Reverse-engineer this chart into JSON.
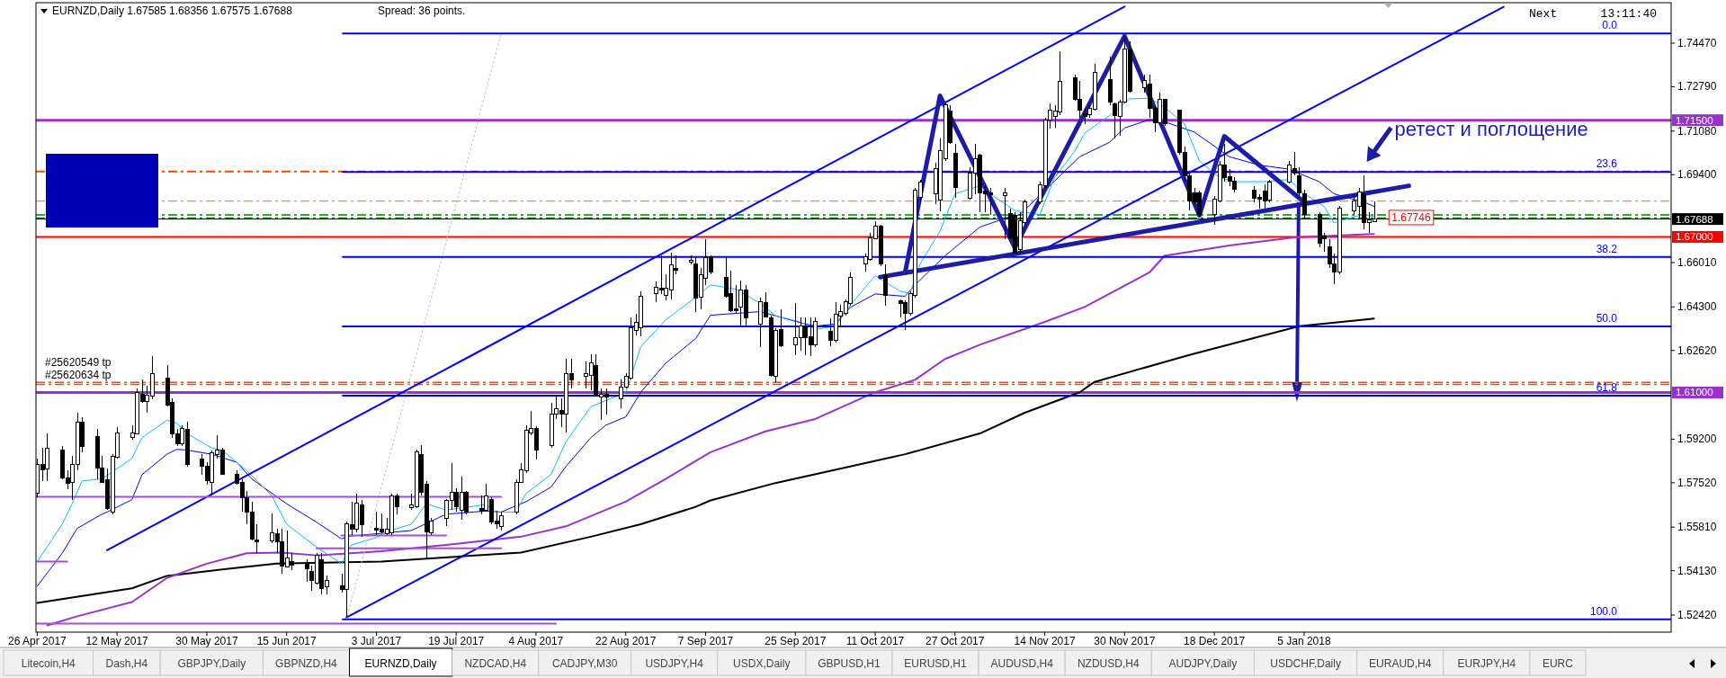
{
  "chart_data": {
    "type": "candlestick",
    "title": "EURNZD,Daily  1.67585 1.68356 1.67575 1.67688",
    "x": [
      "2017-04-26",
      "2017-04-27",
      "2017-04-28",
      "2017-05-01",
      "2017-05-02",
      "2017-05-03",
      "2017-05-04",
      "2017-05-05",
      "2017-05-08",
      "2017-05-09",
      "2017-05-10",
      "2017-05-11",
      "2017-05-12",
      "2017-05-15",
      "2017-05-16",
      "2017-05-17",
      "2017-05-18",
      "2017-05-19",
      "2017-05-22",
      "2017-05-23",
      "2017-05-24",
      "2017-05-25",
      "2017-05-26",
      "2017-05-29",
      "2017-05-30",
      "2017-05-31",
      "2017-06-01",
      "2017-06-02",
      "2017-06-05",
      "2017-06-06",
      "2017-06-07",
      "2017-06-08",
      "2017-06-09",
      "2017-06-12",
      "2017-06-13",
      "2017-06-14",
      "2017-06-15",
      "2017-06-16",
      "2017-06-19",
      "2017-06-20",
      "2017-06-21",
      "2017-06-22",
      "2017-06-23",
      "2017-06-26",
      "2017-06-27",
      "2017-06-28",
      "2017-06-29",
      "2017-06-30",
      "2017-07-03",
      "2017-07-04",
      "2017-07-05",
      "2017-07-06",
      "2017-07-07",
      "2017-07-10",
      "2017-07-11",
      "2017-07-12",
      "2017-07-13",
      "2017-07-14",
      "2017-07-17",
      "2017-07-18",
      "2017-07-19",
      "2017-07-20",
      "2017-07-21",
      "2017-07-24",
      "2017-07-25",
      "2017-07-26",
      "2017-07-27",
      "2017-07-28",
      "2017-07-31",
      "2017-08-01",
      "2017-08-02",
      "2017-08-03",
      "2017-08-04",
      "2017-08-07",
      "2017-08-08",
      "2017-08-09",
      "2017-08-10",
      "2017-08-11",
      "2017-08-14",
      "2017-08-15",
      "2017-08-16",
      "2017-08-17",
      "2017-08-18",
      "2017-08-21",
      "2017-08-22",
      "2017-08-23",
      "2017-08-24",
      "2017-08-25",
      "2017-08-28",
      "2017-08-29",
      "2017-08-30",
      "2017-08-31",
      "2017-09-01",
      "2017-09-04",
      "2017-09-05",
      "2017-09-06",
      "2017-09-07",
      "2017-09-08",
      "2017-09-11",
      "2017-09-12",
      "2017-09-13",
      "2017-09-14",
      "2017-09-15",
      "2017-09-18",
      "2017-09-19",
      "2017-09-20",
      "2017-09-21",
      "2017-09-22",
      "2017-09-25",
      "2017-09-26",
      "2017-09-27",
      "2017-09-28",
      "2017-09-29",
      "2017-10-02",
      "2017-10-03",
      "2017-10-04",
      "2017-10-05",
      "2017-10-06",
      "2017-10-09",
      "2017-10-10",
      "2017-10-11",
      "2017-10-12",
      "2017-10-13",
      "2017-10-16",
      "2017-10-17",
      "2017-10-18",
      "2017-10-19",
      "2017-10-20",
      "2017-10-23",
      "2017-10-24",
      "2017-10-25",
      "2017-10-26",
      "2017-10-27",
      "2017-10-30",
      "2017-10-31",
      "2017-11-01",
      "2017-11-02",
      "2017-11-03",
      "2017-11-06",
      "2017-11-07",
      "2017-11-08",
      "2017-11-09",
      "2017-11-10",
      "2017-11-13",
      "2017-11-14",
      "2017-11-15",
      "2017-11-16",
      "2017-11-17",
      "2017-11-20",
      "2017-11-21",
      "2017-11-22",
      "2017-11-23",
      "2017-11-24",
      "2017-11-27",
      "2017-11-28",
      "2017-11-29",
      "2017-11-30",
      "2017-12-01",
      "2017-12-04",
      "2017-12-05",
      "2017-12-06",
      "2017-12-07",
      "2017-12-08",
      "2017-12-11",
      "2017-12-12",
      "2017-12-13",
      "2017-12-14",
      "2017-12-15",
      "2017-12-18",
      "2017-12-19",
      "2017-12-20",
      "2017-12-21",
      "2017-12-22",
      "2017-12-26",
      "2017-12-27",
      "2017-12-28",
      "2017-12-29",
      "2018-01-02",
      "2018-01-03",
      "2018-01-04",
      "2018-01-05",
      "2018-01-08",
      "2018-01-09",
      "2018-01-10",
      "2018-01-11",
      "2018-01-12",
      "2018-01-15",
      "2018-01-16",
      "2018-01-17",
      "2018-01-18",
      "2018-01-19"
    ],
    "ohlc": [
      [
        1.5711,
        1.5846,
        1.5695,
        1.5823
      ],
      [
        1.5823,
        1.5886,
        1.5759,
        1.5802
      ],
      [
        1.5807,
        1.5942,
        1.5759,
        1.5886
      ],
      [
        1.5878,
        1.5894,
        1.5767,
        1.577
      ],
      [
        1.577,
        1.5799,
        1.5727,
        1.5751
      ],
      [
        1.5754,
        1.5854,
        1.5687,
        1.5823
      ],
      [
        1.5823,
        1.6022,
        1.5799,
        1.5987
      ],
      [
        1.5987,
        1.6006,
        1.587,
        1.5891
      ],
      [
        1.593,
        1.5958,
        1.5767,
        1.581
      ],
      [
        1.581,
        1.5854,
        1.5751,
        1.5754
      ],
      [
        1.5762,
        1.5807,
        1.5647,
        1.5652
      ],
      [
        1.5639,
        1.5862,
        1.5631,
        1.5854
      ],
      [
        1.585,
        1.5966,
        1.5846,
        1.5945
      ],
      [
        1.5926,
        1.5974,
        1.5918,
        1.5945
      ],
      [
        1.5942,
        1.6117,
        1.5939,
        1.6101
      ],
      [
        1.6093,
        1.6152,
        1.6061,
        1.6066
      ],
      [
        1.6066,
        1.6125,
        1.6022,
        1.6088
      ],
      [
        1.6085,
        1.6241,
        1.6073,
        1.6173
      ],
      [
        1.6157,
        1.6205,
        1.6046,
        1.6053
      ],
      [
        1.6061,
        1.6077,
        1.5926,
        1.5939
      ],
      [
        1.5942,
        1.5958,
        1.5894,
        1.5902
      ],
      [
        1.5902,
        1.5974,
        1.5894,
        1.5961
      ],
      [
        1.5958,
        1.5987,
        1.5815,
        1.5823
      ],
      [
        1.5842,
        1.5862,
        1.5783,
        1.5815
      ],
      [
        1.5815,
        1.5831,
        1.5743,
        1.5759
      ],
      [
        1.5754,
        1.5878,
        1.5703,
        1.5867
      ],
      [
        1.5862,
        1.5934,
        1.5846,
        1.5878
      ],
      [
        1.5878,
        1.5886,
        1.5783,
        1.5786
      ],
      [
        1.5786,
        1.5799,
        1.5743,
        1.5751
      ],
      [
        1.5754,
        1.5767,
        1.5639,
        1.5695
      ],
      [
        1.5695,
        1.5719,
        1.5592,
        1.5639
      ],
      [
        1.5639,
        1.5679,
        1.5528,
        1.5536
      ],
      [
        1.5531,
        1.5592,
        1.548,
        1.5525
      ],
      [
        1.5528,
        1.5632,
        1.552,
        1.556
      ],
      [
        1.5557,
        1.5576,
        1.548,
        1.5525
      ],
      [
        1.5525,
        1.5576,
        1.54,
        1.5432
      ],
      [
        1.5429,
        1.5568,
        1.5424,
        1.5461
      ],
      [
        1.5448,
        1.548,
        1.5416,
        1.5435
      ],
      [
        1.5445,
        1.5456,
        1.5369,
        1.542
      ],
      [
        1.5409,
        1.5432,
        1.5337,
        1.5377
      ],
      [
        1.5365,
        1.548,
        1.5361,
        1.5472
      ],
      [
        1.5456,
        1.548,
        1.5321,
        1.5345
      ],
      [
        1.535,
        1.5393,
        1.5321,
        1.5377
      ],
      [
        1.5356,
        1.54,
        1.5329,
        1.534
      ],
      [
        1.534,
        1.5604,
        1.5233,
        1.5595
      ],
      [
        1.5592,
        1.5679,
        1.5552,
        1.5573
      ],
      [
        1.5573,
        1.5711,
        1.556,
        1.5674
      ],
      [
        1.5668,
        1.5687,
        1.5544,
        1.5592
      ],
      [
        1.5576,
        1.5639,
        1.5552,
        1.5568
      ],
      [
        1.5572,
        1.5632,
        1.5557,
        1.5563
      ],
      [
        1.5557,
        1.5616,
        1.5552,
        1.5573
      ],
      [
        1.556,
        1.5711,
        1.5552,
        1.57
      ],
      [
        1.57,
        1.5711,
        1.5631,
        1.5659
      ],
      [
        1.5655,
        1.5711,
        1.5647,
        1.5668
      ],
      [
        1.5659,
        1.5881,
        1.5655,
        1.587
      ],
      [
        1.5862,
        1.5897,
        1.5703,
        1.5716
      ],
      [
        1.5748,
        1.5759,
        1.5456,
        1.5563
      ],
      [
        1.556,
        1.5616,
        1.5552,
        1.5604
      ],
      [
        1.5616,
        1.569,
        1.5584,
        1.5684
      ],
      [
        1.5684,
        1.5827,
        1.5647,
        1.5716
      ],
      [
        1.5716,
        1.5732,
        1.5639,
        1.5659
      ],
      [
        1.5647,
        1.5775,
        1.5608,
        1.5716
      ],
      [
        1.5716,
        1.5722,
        1.5631,
        1.5639
      ],
      [
        1.5652,
        1.5703,
        1.5631,
        1.5643
      ],
      [
        1.5647,
        1.5748,
        1.5639,
        1.57
      ],
      [
        1.5687,
        1.5695,
        1.5592,
        1.56
      ],
      [
        1.5604,
        1.5643,
        1.5576,
        1.5595
      ],
      [
        1.5584,
        1.5639,
        1.5568,
        1.5624
      ],
      [
        1.5639,
        1.5767,
        1.5631,
        1.5754
      ],
      [
        1.5754,
        1.5827,
        1.5751,
        1.5802
      ],
      [
        1.5799,
        1.5974,
        1.5791,
        1.5955
      ],
      [
        1.5945,
        1.603,
        1.5934,
        1.5961
      ],
      [
        1.5961,
        1.5971,
        1.5843,
        1.5878
      ],
      [
        1.5894,
        1.6061,
        1.5886,
        1.6018
      ],
      [
        1.6018,
        1.6093,
        1.5998,
        1.6038
      ],
      [
        1.603,
        1.6077,
        1.5966,
        1.6018
      ],
      [
        1.6018,
        1.6229,
        1.5945,
        1.6173
      ],
      [
        1.6173,
        1.6229,
        1.6117,
        1.6149
      ],
      [
        1.6162,
        1.6221,
        1.6117,
        1.6173
      ],
      [
        1.6165,
        1.6248,
        1.6109,
        1.6216
      ],
      [
        1.6205,
        1.6248,
        1.6085,
        1.6093
      ],
      [
        1.6082,
        1.6117,
        1.5993,
        1.6093
      ],
      [
        1.6093,
        1.6114,
        1.6014,
        1.6082
      ],
      [
        1.6077,
        1.6152,
        1.6038,
        1.612
      ],
      [
        1.612,
        1.6173,
        1.6117,
        1.6162
      ],
      [
        1.6157,
        1.6391,
        1.6152,
        1.6348
      ],
      [
        1.634,
        1.6404,
        1.6321,
        1.6369
      ],
      [
        1.6348,
        1.6491,
        1.6316,
        1.6471
      ],
      [
        1.648,
        1.6528,
        1.6448,
        1.6507
      ],
      [
        1.6503,
        1.6627,
        1.648,
        1.6496
      ],
      [
        1.6475,
        1.6555,
        1.6455,
        1.6503
      ],
      [
        1.6496,
        1.6639,
        1.6459,
        1.6592
      ],
      [
        1.6579,
        1.663,
        1.6555,
        1.6571
      ],
      [
        1.6601,
        1.663,
        1.6595,
        1.6611
      ],
      [
        1.6595,
        1.6624,
        1.6412,
        1.6464
      ],
      [
        1.6467,
        1.6579,
        1.642,
        1.6555
      ],
      [
        1.6539,
        1.669,
        1.6515,
        1.6619
      ],
      [
        1.6624,
        1.6627,
        1.6555,
        1.6566
      ],
      [
        1.6544,
        1.6624,
        1.6467,
        1.6471
      ],
      [
        1.648,
        1.6571,
        1.6412,
        1.6417
      ],
      [
        1.6423,
        1.6515,
        1.6404,
        1.6417
      ],
      [
        1.6428,
        1.6531,
        1.6356,
        1.6496
      ],
      [
        1.6496,
        1.6515,
        1.6356,
        1.6388
      ],
      [
        1.6364,
        1.6467,
        1.6276,
        1.6451
      ],
      [
        1.6448,
        1.6487,
        1.6388,
        1.6391
      ],
      [
        1.6388,
        1.6396,
        1.6162,
        1.6165
      ],
      [
        1.6162,
        1.6348,
        1.6141,
        1.634
      ],
      [
        1.6343,
        1.642,
        1.6276,
        1.628
      ],
      [
        1.6284,
        1.6444,
        1.6245,
        1.6311
      ],
      [
        1.6311,
        1.6388,
        1.626,
        1.6356
      ],
      [
        1.6356,
        1.6388,
        1.6245,
        1.6311
      ],
      [
        1.6316,
        1.6388,
        1.6241,
        1.6284
      ],
      [
        1.6284,
        1.6388,
        1.6276,
        1.6375
      ],
      [
        1.6337,
        1.6385,
        1.628,
        1.63
      ],
      [
        1.63,
        1.6448,
        1.6292,
        1.6401
      ],
      [
        1.6396,
        1.6439,
        1.6356,
        1.6412
      ],
      [
        1.6404,
        1.6459,
        1.6396,
        1.6451
      ],
      [
        1.6444,
        1.6563,
        1.6436,
        1.6544
      ],
      [
        1.6595,
        1.6635,
        1.6566,
        1.6624
      ],
      [
        1.6614,
        1.6714,
        1.6608,
        1.6698
      ],
      [
        1.6694,
        1.6762,
        1.669,
        1.6741
      ],
      [
        1.6741,
        1.6746,
        1.6587,
        1.6595
      ],
      [
        1.6555,
        1.6595,
        1.6436,
        1.6475
      ],
      [
        1.6452,
        1.6459,
        1.6388,
        1.6444
      ],
      [
        1.6448,
        1.6455,
        1.634,
        1.6404
      ],
      [
        1.6404,
        1.6491,
        1.6396,
        1.648
      ],
      [
        1.6475,
        1.6889,
        1.6467,
        1.6881
      ],
      [
        1.6853,
        1.6921,
        1.6834,
        1.6913
      ],
      [
        1.6866,
        1.6985,
        1.6826,
        1.6964
      ],
      [
        1.6842,
        1.7081,
        1.6799,
        1.7033
      ],
      [
        1.7001,
        1.7216,
        1.6993,
        1.7208
      ],
      [
        1.7184,
        1.7208,
        1.7057,
        1.7065
      ],
      [
        1.7022,
        1.7057,
        1.685,
        1.6889
      ],
      [
        1.685,
        1.6969,
        1.6842,
        1.6945
      ],
      [
        1.6945,
        1.7057,
        1.6866,
        1.7001
      ],
      [
        1.7017,
        1.7022,
        1.6794,
        1.6869
      ],
      [
        1.6878,
        1.6905,
        1.6794,
        1.6866
      ],
      [
        1.6869,
        1.6889,
        1.6786,
        1.6862
      ],
      [
        1.6858,
        1.6889,
        1.669,
        1.6869
      ],
      [
        1.6789,
        1.681,
        1.669,
        1.6698
      ],
      [
        1.6783,
        1.6794,
        1.6635,
        1.6639
      ],
      [
        1.6651,
        1.6794,
        1.6639,
        1.6762
      ],
      [
        1.6754,
        1.6842,
        1.6746,
        1.6834
      ],
      [
        1.6834,
        1.6913,
        1.6826,
        1.6901
      ],
      [
        1.6897,
        1.716,
        1.6889,
        1.7152
      ],
      [
        1.7149,
        1.7216,
        1.7117,
        1.7187
      ],
      [
        1.7165,
        1.7208,
        1.712,
        1.7184
      ],
      [
        1.7181,
        1.7415,
        1.7168,
        1.7299
      ],
      [
        1.7315,
        1.7327,
        1.7224,
        1.7229
      ],
      [
        1.7229,
        1.7303,
        1.716,
        1.7187
      ],
      [
        1.7176,
        1.7197,
        1.7136,
        1.7165
      ],
      [
        1.7171,
        1.7208,
        1.716,
        1.7197
      ],
      [
        1.7192,
        1.7367,
        1.7187,
        1.7335
      ],
      [
        1.7308,
        1.7394,
        1.7208,
        1.7219
      ],
      [
        1.7213,
        1.7219,
        1.7081,
        1.7168
      ],
      [
        1.7165,
        1.7229,
        1.7089,
        1.7219
      ],
      [
        1.7219,
        1.7471,
        1.7216,
        1.7423
      ],
      [
        1.742,
        1.7455,
        1.7256,
        1.7261
      ],
      [
        1.7276,
        1.7327,
        1.7256,
        1.7303
      ],
      [
        1.7288,
        1.7327,
        1.716,
        1.7197
      ],
      [
        1.7197,
        1.7203,
        1.7104,
        1.7139
      ],
      [
        1.7139,
        1.7256,
        1.7128,
        1.7232
      ],
      [
        1.7229,
        1.7232,
        1.7128,
        1.7136
      ],
      [
        1.7187,
        1.7192,
        1.7017,
        1.7025
      ],
      [
        1.7025,
        1.7049,
        1.6913,
        1.6937
      ],
      [
        1.6937,
        1.6945,
        1.6802,
        1.6837
      ],
      [
        1.6869,
        1.6889,
        1.6826,
        1.6834
      ],
      [
        1.6869,
        1.6878,
        1.6778,
        1.6786
      ],
      [
        1.6786,
        1.6858,
        1.6746,
        1.6846
      ],
      [
        1.6837,
        1.6993,
        1.6834,
        1.6977
      ],
      [
        1.6977,
        1.7057,
        1.6913,
        1.6929
      ],
      [
        1.6932,
        1.6961,
        1.6897,
        1.6916
      ],
      [
        1.6916,
        1.6929,
        1.6873,
        1.6885
      ],
      [
        1.6881,
        1.6897,
        1.6834,
        1.685
      ],
      [
        1.6853,
        1.6866,
        1.681,
        1.6846
      ],
      [
        1.6878,
        1.6901,
        1.681,
        1.6837
      ],
      [
        1.6842,
        1.6921,
        1.6834,
        1.6913
      ],
      [
        1.6913,
        1.6993,
        1.6905,
        1.6977
      ],
      [
        1.6964,
        1.7028,
        1.6937,
        1.6945
      ],
      [
        1.6937,
        1.6969,
        1.6858,
        1.6869
      ],
      [
        1.6866,
        1.6881,
        1.677,
        1.6786
      ],
      [
        1.6786,
        1.6794,
        1.6659,
        1.6674
      ],
      [
        1.6703,
        1.6714,
        1.6643,
        1.6694
      ],
      [
        1.6662,
        1.669,
        1.6579,
        1.6595
      ],
      [
        1.6595,
        1.6635,
        1.6519,
        1.6566
      ],
      [
        1.6563,
        1.6818,
        1.6555,
        1.681
      ],
      [
        1.6799,
        1.6866,
        1.6786,
        1.6837
      ],
      [
        1.6818,
        1.6889,
        1.677,
        1.6873
      ],
      [
        1.6866,
        1.6937,
        1.673,
        1.6754
      ],
      [
        1.6754,
        1.6794,
        1.6714,
        1.6767
      ],
      [
        1.67585,
        1.68356,
        1.67575,
        1.67688
      ]
    ],
    "xlim": [
      "2017-04-25T18:00",
      "2018-03-19T14:00"
    ],
    "xticks": [
      {
        "value": "2017-04-26",
        "label": "26 Apr 2017"
      },
      {
        "value": "2017-05-12",
        "label": "12 May 2017"
      },
      {
        "value": "2017-05-30",
        "label": "30 May 2017"
      },
      {
        "value": "2017-06-15",
        "label": "15 Jun 2017"
      },
      {
        "value": "2017-07-03",
        "label": "3 Jul 2017"
      },
      {
        "value": "2017-07-19",
        "label": "19 Jul 2017"
      },
      {
        "value": "2017-08-04",
        "label": "4 Aug 2017"
      },
      {
        "value": "2017-08-22",
        "label": "22 Aug 2017"
      },
      {
        "value": "2017-09-07",
        "label": "7 Sep 2017"
      },
      {
        "value": "2017-09-25",
        "label": "25 Sep 2017"
      },
      {
        "value": "2017-10-11",
        "label": "11 Oct 2017"
      },
      {
        "value": "2017-10-27",
        "label": "27 Oct 2017"
      },
      {
        "value": "2017-11-14",
        "label": "14 Nov 2017"
      },
      {
        "value": "2017-11-30",
        "label": "30 Nov 2017"
      },
      {
        "value": "2017-12-18",
        "label": "18 Dec 2017"
      },
      {
        "value": "2018-01-05",
        "label": "5 Jan 2018"
      }
    ],
    "ylim": [
      1.5176,
      1.7603
    ],
    "yticks": [
      {
        "value": 1.7447,
        "label": "1.74470"
      },
      {
        "value": 1.7279,
        "label": "1.72790"
      },
      {
        "value": 1.7108,
        "label": "1.71080"
      },
      {
        "value": 1.694,
        "label": "1.69400"
      },
      {
        "value": 1.6601,
        "label": "1.66010"
      },
      {
        "value": 1.643,
        "label": "1.64300"
      },
      {
        "value": 1.6262,
        "label": "1.62620"
      },
      {
        "value": 1.592,
        "label": "1.59200"
      },
      {
        "value": 1.5752,
        "label": "1.57520"
      },
      {
        "value": 1.5581,
        "label": "1.55810"
      },
      {
        "value": 1.5413,
        "label": "1.54130"
      },
      {
        "value": 1.5242,
        "label": "1.52420"
      }
    ],
    "series": [
      {
        "type": "line",
        "color": "#000000",
        "x": [
          "2017-04-26",
          "2017-05-15",
          "2017-05-22",
          "2017-06-05",
          "2017-06-13",
          "2017-07-04",
          "2017-08-01",
          "2017-08-15",
          "2017-08-25",
          "2017-09-05",
          "2017-09-08",
          "2017-09-21",
          "2017-10-06",
          "2017-10-17",
          "2017-11-01",
          "2017-11-10",
          "2017-11-21",
          "2017-11-24",
          "2017-12-13",
          "2018-01-04",
          "2018-01-19"
        ],
        "values": [
          1.5289,
          1.5345,
          1.5393,
          1.5424,
          1.544,
          1.5448,
          1.5483,
          1.5544,
          1.5592,
          1.5659,
          1.5684,
          1.5751,
          1.5815,
          1.5862,
          1.5942,
          1.6022,
          1.6101,
          1.6141,
          1.6245,
          1.6356,
          1.6385
        ]
      },
      {
        "type": "line",
        "color": "#9932cc",
        "x": [
          "2017-04-28",
          "2017-05-04",
          "2017-05-15",
          "2017-05-22",
          "2017-05-30",
          "2017-06-07",
          "2017-06-14",
          "2017-06-21",
          "2017-07-04",
          "2017-07-17",
          "2017-08-01",
          "2017-08-10",
          "2017-08-22",
          "2017-08-30",
          "2017-09-08",
          "2017-09-19",
          "2017-09-29",
          "2017-10-11",
          "2017-10-19",
          "2017-10-25",
          "2017-11-01",
          "2017-11-14",
          "2017-11-22",
          "2017-12-05",
          "2017-12-08",
          "2017-12-21",
          "2018-01-03",
          "2018-01-19"
        ],
        "values": [
          1.5202,
          1.5237,
          1.5292,
          1.5385,
          1.544,
          1.548,
          1.5483,
          1.5472,
          1.5488,
          1.5512,
          1.5544,
          1.5584,
          1.5679,
          1.5767,
          1.587,
          1.595,
          1.5998,
          1.6101,
          1.6149,
          1.6229,
          1.6284,
          1.6372,
          1.643,
          1.6563,
          1.6627,
          1.6667,
          1.6698,
          1.6711
        ]
      },
      {
        "type": "line",
        "color": "#0000ff",
        "x": [
          "2017-04-26",
          "2017-05-01",
          "2017-05-04",
          "2017-05-09",
          "2017-05-10",
          "2017-05-15",
          "2017-05-17",
          "2017-05-22",
          "2017-05-24",
          "2017-05-26",
          "2017-05-31",
          "2017-06-05",
          "2017-06-08",
          "2017-06-15",
          "2017-06-21",
          "2017-06-26",
          "2017-06-28",
          "2017-07-04",
          "2017-07-10",
          "2017-07-17",
          "2017-07-25",
          "2017-07-28",
          "2017-08-02",
          "2017-08-07",
          "2017-08-10",
          "2017-08-15",
          "2017-08-18",
          "2017-08-22",
          "2017-08-25",
          "2017-08-30",
          "2017-09-05",
          "2017-09-08",
          "2017-09-18",
          "2017-09-26",
          "2017-09-29",
          "2017-10-03",
          "2017-10-06",
          "2017-10-11",
          "2017-10-17",
          "2017-10-19",
          "2017-10-25",
          "2017-11-01",
          "2017-11-07",
          "2017-11-09",
          "2017-11-13",
          "2017-11-21",
          "2017-11-27",
          "2017-11-30",
          "2017-12-05",
          "2017-12-08",
          "2017-12-14",
          "2017-12-21",
          "2017-12-27",
          "2018-01-02",
          "2018-01-08",
          "2018-01-11",
          "2018-01-17",
          "2018-01-19"
        ],
        "values": [
          1.5353,
          1.548,
          1.5576,
          1.5631,
          1.5639,
          1.5687,
          1.5783,
          1.5862,
          1.5881,
          1.5878,
          1.5862,
          1.5831,
          1.5767,
          1.5671,
          1.56,
          1.5536,
          1.5547,
          1.5557,
          1.5568,
          1.5631,
          1.5643,
          1.5639,
          1.5679,
          1.5735,
          1.5815,
          1.5926,
          1.5974,
          1.6006,
          1.6101,
          1.6213,
          1.6308,
          1.6398,
          1.6412,
          1.6369,
          1.6356,
          1.6364,
          1.6428,
          1.648,
          1.6471,
          1.6515,
          1.6627,
          1.6738,
          1.6778,
          1.6786,
          1.686,
          1.7009,
          1.7065,
          1.712,
          1.7152,
          1.7144,
          1.7104,
          1.7009,
          1.6977,
          1.6961,
          1.6913,
          1.6866,
          1.6834,
          1.6818
        ]
      },
      {
        "type": "line",
        "color": "#00bfff",
        "x": [
          "2017-04-26",
          "2017-05-01",
          "2017-05-03",
          "2017-05-05",
          "2017-05-09",
          "2017-05-15",
          "2017-05-17",
          "2017-05-22",
          "2017-05-24",
          "2017-05-26",
          "2017-05-31",
          "2017-06-02",
          "2017-06-07",
          "2017-06-12",
          "2017-06-15",
          "2017-06-21",
          "2017-06-26",
          "2017-06-28",
          "2017-07-03",
          "2017-07-05",
          "2017-07-10",
          "2017-07-13",
          "2017-07-17",
          "2017-07-25",
          "2017-07-27",
          "2017-07-31",
          "2017-08-02",
          "2017-08-07",
          "2017-08-10",
          "2017-08-15",
          "2017-08-18",
          "2017-08-22",
          "2017-08-25",
          "2017-08-30",
          "2017-09-05",
          "2017-09-08",
          "2017-09-13",
          "2017-09-18",
          "2017-09-21",
          "2017-09-26",
          "2017-09-29",
          "2017-10-03",
          "2017-10-06",
          "2017-10-11",
          "2017-10-16",
          "2017-10-18",
          "2017-10-20",
          "2017-10-24",
          "2017-10-27",
          "2017-11-01",
          "2017-11-03",
          "2017-11-08",
          "2017-11-13",
          "2017-11-16",
          "2017-11-20",
          "2017-11-22",
          "2017-11-27",
          "2017-12-01",
          "2017-12-05",
          "2017-12-08",
          "2017-12-12",
          "2017-12-15",
          "2017-12-19",
          "2017-12-22",
          "2017-12-28",
          "2018-01-02",
          "2018-01-05",
          "2018-01-09",
          "2018-01-11",
          "2018-01-15",
          "2018-01-17",
          "2018-01-19"
        ],
        "values": [
          1.5448,
          1.5592,
          1.5671,
          1.5759,
          1.5767,
          1.5846,
          1.5926,
          1.5993,
          1.5982,
          1.5942,
          1.5886,
          1.5878,
          1.5799,
          1.5703,
          1.5592,
          1.5504,
          1.544,
          1.5512,
          1.5541,
          1.5563,
          1.5592,
          1.5671,
          1.5647,
          1.5668,
          1.5639,
          1.5639,
          1.5711,
          1.5783,
          1.591,
          1.6045,
          1.6069,
          1.6101,
          1.6276,
          1.638,
          1.6467,
          1.6515,
          1.6499,
          1.6444,
          1.6396,
          1.6372,
          1.6343,
          1.6356,
          1.6436,
          1.655,
          1.6491,
          1.6483,
          1.6595,
          1.6722,
          1.6866,
          1.6897,
          1.6866,
          1.6802,
          1.6786,
          1.693,
          1.703,
          1.71,
          1.7168,
          1.7232,
          1.7235,
          1.72,
          1.7136,
          1.6993,
          1.6929,
          1.6913,
          1.6913,
          1.6921,
          1.6866,
          1.6818,
          1.6754,
          1.6778,
          1.6786,
          1.6778
        ]
      },
      {
        "type": "line",
        "color": "#0000ff",
        "x": [
          "2017-05-10",
          "2017-11-30"
        ],
        "values": [
          1.5492,
          1.7588
        ]
      },
      {
        "type": "line",
        "color": "#0000ff",
        "x": [
          "2017-06-27",
          "2018-02-14"
        ],
        "values": [
          1.5233,
          1.7587
        ]
      },
      {
        "type": "line",
        "color": "#c0c0c0",
        "line_style": "dotted",
        "x": [
          "2017-06-27",
          "2017-07-28"
        ],
        "values": [
          1.5225,
          1.7484
        ]
      },
      {
        "type": "line",
        "name": "0.0",
        "color": "#0000ff",
        "x": [
          "2017-06-26T06:00",
          "2018-03-19T14:00"
        ],
        "values": [
          1.7484,
          1.7484
        ]
      },
      {
        "type": "line",
        "name": "23.6",
        "color": "#0000ff",
        "x": [
          "2017-06-26T06:00",
          "2018-03-19T14:00"
        ],
        "values": [
          1.695,
          1.695
        ]
      },
      {
        "type": "line",
        "name": "38.2",
        "color": "#0000ff",
        "x": [
          "2017-06-26T06:00",
          "2018-03-19T14:00"
        ],
        "values": [
          1.6623,
          1.6623
        ]
      },
      {
        "type": "line",
        "name": "50.0",
        "color": "#0000ff",
        "x": [
          "2017-06-26T06:00",
          "2018-03-19T14:00"
        ],
        "values": [
          1.6355,
          1.6355
        ]
      },
      {
        "type": "line",
        "name": "61.8",
        "color": "#0000ff",
        "x": [
          "2017-06-26T06:00",
          "2018-03-19T14:00"
        ],
        "values": [
          1.6088,
          1.6088
        ]
      },
      {
        "type": "line",
        "name": "100.0",
        "color": "#0000ff",
        "x": [
          "2017-06-26T06:00",
          "2018-03-19T14:00"
        ],
        "values": [
          1.5225,
          1.5225
        ]
      },
      {
        "type": "line",
        "color": "#1c1ca8",
        "x": [
          "2017-10-12",
          "2018-01-26"
        ],
        "values": [
          1.6545,
          1.6897
        ]
      },
      {
        "type": "line",
        "color": "#1c1ca8",
        "x": [
          "2017-10-17",
          "2017-10-24",
          "2017-11-08",
          "2017-11-30",
          "2017-12-15",
          "2017-12-20",
          "2018-01-05"
        ],
        "values": [
          1.6562,
          1.7244,
          1.6659,
          1.7474,
          1.6783,
          1.7088,
          1.6834
        ]
      },
      {
        "type": "line",
        "color": "#a64ed8",
        "x": [
          "2017-04-25T18:00",
          "2017-07-28"
        ],
        "values": [
          1.5698,
          1.5698
        ]
      },
      {
        "type": "line",
        "color": "#a64ed8",
        "x": [
          "2017-04-26",
          "2017-05-02"
        ],
        "values": [
          1.5448,
          1.5448
        ]
      },
      {
        "type": "line",
        "color": "#a64ed8",
        "x": [
          "2017-04-25T18:00",
          "2017-08-08"
        ],
        "values": [
          1.5209,
          1.5209
        ]
      },
      {
        "type": "line",
        "color": "#a64ed8",
        "x": [
          "2017-06-26",
          "2017-07-17"
        ],
        "values": [
          1.5549,
          1.5549
        ]
      },
      {
        "type": "line",
        "color": "#a64ed8",
        "x": [
          "2017-06-21",
          "2017-07-28"
        ],
        "values": [
          1.5499,
          1.5499
        ]
      }
    ],
    "ref_lines": [
      {
        "axis": "y",
        "value": 1.715,
        "label": "1.71500",
        "color": "#9932cc"
      },
      {
        "axis": "y",
        "value": 1.6952,
        "color": "#ff4500",
        "line_style": "dashed"
      },
      {
        "axis": "y",
        "value": 1.6838,
        "color": "#ff6a00",
        "line_style": "dashed"
      },
      {
        "axis": "y",
        "value": 1.6785,
        "color": "#008000",
        "line_style": "dashed"
      },
      {
        "axis": "y",
        "value": 1.6773,
        "color": "#008000",
        "line_style": "dashed"
      },
      {
        "axis": "y",
        "value": 1.67688,
        "label": "1.67688",
        "color": "#000000"
      },
      {
        "axis": "y",
        "value": 1.67,
        "label": "1.67000",
        "color": "#ff0000"
      },
      {
        "axis": "y",
        "value": 1.6139,
        "label": "#25620634 tp",
        "color": "#ff4500",
        "line_style": "dashed"
      },
      {
        "axis": "y",
        "value": 1.6131,
        "label": "#25620549 tp",
        "color": "#ff4500",
        "line_style": "dashed"
      },
      {
        "axis": "y",
        "value": 1.61,
        "label": "1.61000",
        "color": "#9932cc"
      }
    ],
    "annotations": [
      "Spread: 36 points.",
      "Next",
      "13:11:40",
      "ретест и поглощение",
      {
        "text": "1.67746",
        "x": "2018-01-22",
        "y": 1.67746
      },
      "Litecoin,H4",
      "Dash,H4",
      "GBPJPY,Daily",
      "GBPNZD,H4",
      "EURNZD,Daily",
      "NZDCAD,H4",
      "CADJPY,M30",
      "USDJPY,H4",
      "USDX,Daily",
      "GBPUSD,H1",
      "EURUSD,H1",
      "AUDUSD,H4",
      "NZDUSD,H4",
      "AUDJPY,Daily",
      "USDCHF,Daily",
      "EURAUD,H4",
      "EURJPY,H4",
      "EURC"
    ]
  }
}
